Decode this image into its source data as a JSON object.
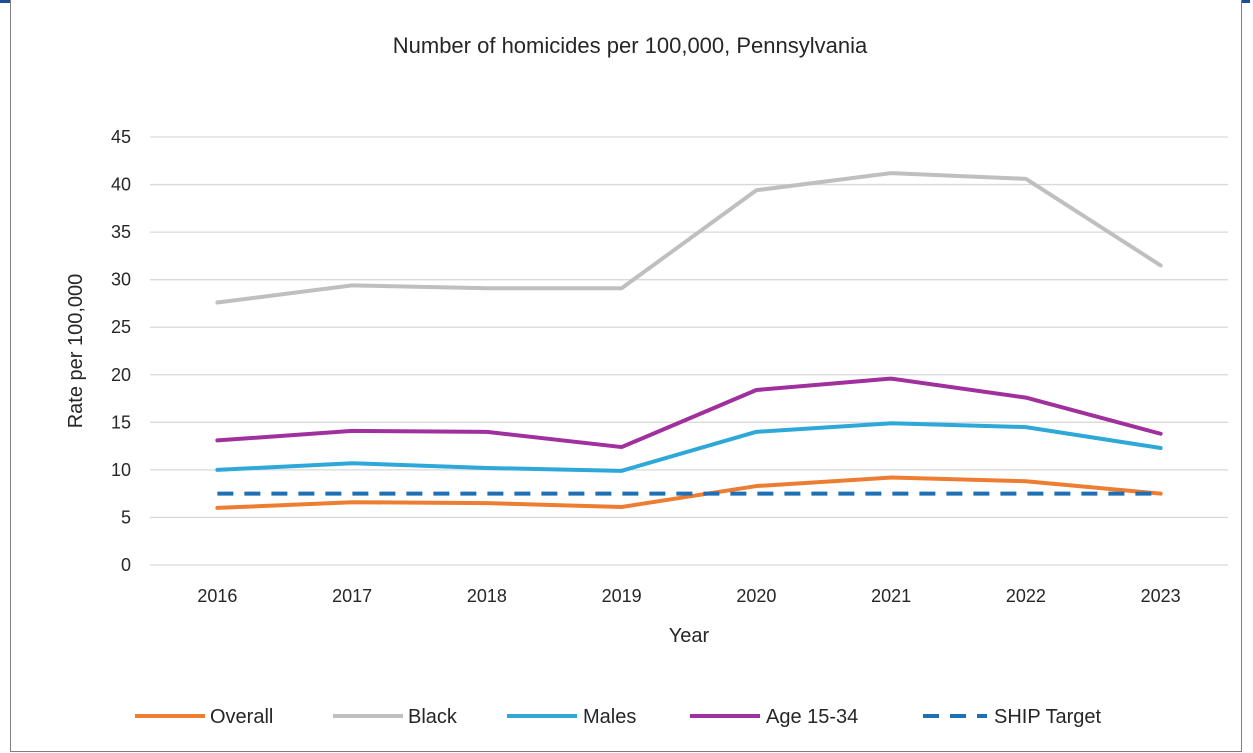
{
  "chart_data": {
    "type": "line",
    "title": "Number of homicides per 100,000, Pennsylvania",
    "xlabel": "Year",
    "ylabel": "Rate per 100,000",
    "categories": [
      "2016",
      "2017",
      "2018",
      "2019",
      "2020",
      "2021",
      "2022",
      "2023"
    ],
    "ylim": [
      0,
      45
    ],
    "yticks": [
      "0",
      "5",
      "10",
      "15",
      "20",
      "25",
      "30",
      "35",
      "40",
      "45"
    ],
    "grid": true,
    "legend_position": "bottom",
    "series": [
      {
        "name": "Overall",
        "color": "#ed7d31",
        "dash": false,
        "values": [
          6.0,
          6.6,
          6.5,
          6.1,
          8.3,
          9.2,
          8.8,
          7.5
        ]
      },
      {
        "name": "Black",
        "color": "#bfbfbf",
        "dash": false,
        "values": [
          27.6,
          29.4,
          29.1,
          29.1,
          39.4,
          41.2,
          40.6,
          31.5
        ]
      },
      {
        "name": "Males",
        "color": "#2ea8d8",
        "dash": false,
        "values": [
          10.0,
          10.7,
          10.2,
          9.9,
          14.0,
          14.9,
          14.5,
          12.3
        ]
      },
      {
        "name": "Age 15-34",
        "color": "#a0309d",
        "dash": false,
        "values": [
          13.1,
          14.1,
          14.0,
          12.4,
          18.4,
          19.6,
          17.6,
          13.8
        ]
      },
      {
        "name": "SHIP Target",
        "color": "#1f6fb5",
        "dash": true,
        "values": [
          7.5,
          7.5,
          7.5,
          7.5,
          7.5,
          7.5,
          7.5,
          7.5
        ]
      }
    ]
  }
}
